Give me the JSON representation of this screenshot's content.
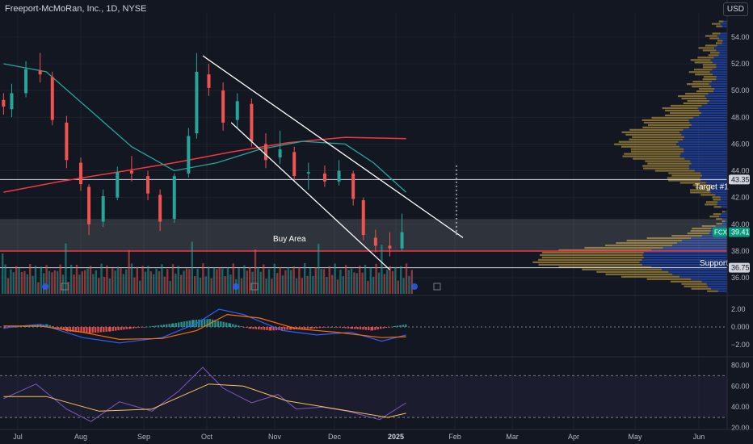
{
  "header": {
    "title": "Freeport-McMoRan, Inc., 1D, NYSE",
    "currency": "USD"
  },
  "colors": {
    "up": "#26a69a",
    "down": "#ef5350",
    "ma50": "#26a69a",
    "ma200": "#f23645",
    "line": "#ffffff",
    "vp_up": "#2962ff",
    "vp_down": "#a6893a"
  },
  "chart_data": {
    "type": "candlestick",
    "symbol": "FCX",
    "x_labels": [
      "Jul",
      "Aug",
      "Sep",
      "Oct",
      "Nov",
      "Dec",
      "2025",
      "Feb",
      "Mar",
      "Apr",
      "May",
      "Jun"
    ],
    "y_ticks": [
      36.0,
      38.0,
      40.0,
      42.0,
      44.0,
      46.0,
      48.0,
      50.0,
      52.0,
      54.0
    ],
    "ylim": [
      34.8,
      55.8
    ],
    "last_price": {
      "label": "FCX",
      "value": "39.41"
    },
    "levels": [
      {
        "name": "Target #1",
        "value": 43.35,
        "label": "43.35"
      },
      {
        "name": "Support",
        "value": 36.75,
        "label": "36.75"
      }
    ],
    "zones": [
      {
        "name": "Buy Area",
        "from": 38.0,
        "to": 40.4
      }
    ],
    "support_line": 38.0,
    "annotations": [
      {
        "text": "Buy Area",
        "x": "Nov",
        "y": 38.9
      },
      {
        "text": "Target #1",
        "y": 42.8
      },
      {
        "text": "Support",
        "y": 37.1
      }
    ],
    "channel": {
      "upper": [
        {
          "x": "2024-09-30",
          "y": 52.6
        },
        {
          "x": "2025-02-05",
          "y": 39.0
        }
      ],
      "lower": [
        {
          "x": "2024-10-14",
          "y": 47.6
        },
        {
          "x": "2024-12-31",
          "y": 36.6
        }
      ]
    },
    "prices": [
      [
        "2024-06-24",
        49.3,
        49.8,
        48.2,
        48.8
      ],
      [
        "2024-06-28",
        48.6,
        50.5,
        48.0,
        49.8
      ],
      [
        "2024-07-05",
        49.8,
        52.2,
        49.5,
        51.6
      ],
      [
        "2024-07-12",
        51.5,
        52.8,
        50.6,
        51.2
      ],
      [
        "2024-07-18",
        51.0,
        51.4,
        47.4,
        47.8
      ],
      [
        "2024-07-25",
        47.6,
        48.1,
        44.2,
        44.8
      ],
      [
        "2024-08-01",
        44.6,
        45.0,
        42.5,
        43.0
      ],
      [
        "2024-08-05",
        42.8,
        43.0,
        39.2,
        40.0
      ],
      [
        "2024-08-12",
        40.2,
        42.6,
        39.8,
        42.1
      ],
      [
        "2024-08-19",
        42.0,
        44.3,
        41.8,
        43.9
      ],
      [
        "2024-08-26",
        44.0,
        45.1,
        43.2,
        43.8
      ],
      [
        "2024-09-03",
        43.6,
        44.0,
        41.8,
        42.3
      ],
      [
        "2024-09-09",
        42.2,
        42.6,
        39.5,
        40.2
      ],
      [
        "2024-09-16",
        40.4,
        43.8,
        40.1,
        43.6
      ],
      [
        "2024-09-23",
        43.8,
        47.2,
        43.5,
        46.6
      ],
      [
        "2024-09-27",
        46.8,
        52.8,
        46.4,
        51.4
      ],
      [
        "2024-10-03",
        51.2,
        52.0,
        49.6,
        50.2
      ],
      [
        "2024-10-10",
        50.0,
        50.6,
        47.0,
        47.6
      ],
      [
        "2024-10-17",
        47.8,
        49.8,
        47.2,
        49.2
      ],
      [
        "2024-10-24",
        49.0,
        49.4,
        45.8,
        46.2
      ],
      [
        "2024-10-31",
        46.0,
        46.8,
        44.2,
        44.8
      ],
      [
        "2024-11-07",
        45.0,
        47.0,
        44.5,
        45.6
      ],
      [
        "2024-11-14",
        45.4,
        45.8,
        43.2,
        43.6
      ],
      [
        "2024-11-21",
        43.8,
        44.6,
        42.6,
        43.9
      ],
      [
        "2024-11-29",
        43.8,
        44.4,
        42.8,
        43.2
      ],
      [
        "2024-12-06",
        43.2,
        44.8,
        42.9,
        44.0
      ],
      [
        "2024-12-13",
        43.8,
        44.0,
        41.4,
        41.9
      ],
      [
        "2024-12-18",
        41.8,
        42.0,
        38.8,
        39.2
      ],
      [
        "2024-12-24",
        39.0,
        39.6,
        37.9,
        38.4
      ],
      [
        "2024-12-31",
        38.4,
        39.4,
        37.6,
        38.2
      ],
      [
        "2025-01-06",
        38.2,
        40.8,
        38.0,
        39.41
      ]
    ],
    "ma50": [
      [
        "2024-06-24",
        52.0
      ],
      [
        "2024-07-15",
        51.4
      ],
      [
        "2024-08-05",
        48.6
      ],
      [
        "2024-08-26",
        45.8
      ],
      [
        "2024-09-16",
        44.0
      ],
      [
        "2024-10-07",
        44.6
      ],
      [
        "2024-10-28",
        45.6
      ],
      [
        "2024-11-18",
        46.2
      ],
      [
        "2024-12-09",
        46.0
      ],
      [
        "2024-12-23",
        44.6
      ],
      [
        "2025-01-08",
        42.4
      ]
    ],
    "ma200": [
      [
        "2024-06-24",
        42.4
      ],
      [
        "2024-07-22",
        43.2
      ],
      [
        "2024-08-19",
        43.9
      ],
      [
        "2024-09-16",
        44.6
      ],
      [
        "2024-10-14",
        45.4
      ],
      [
        "2024-11-11",
        46.1
      ],
      [
        "2024-12-09",
        46.5
      ],
      [
        "2025-01-08",
        46.4
      ]
    ],
    "macd": {
      "y_ticks": [
        2.0,
        0.0,
        -2.0
      ],
      "y_tick_labels": [
        "2.00",
        "0.000",
        "−2.00"
      ],
      "ylim": [
        -3.0,
        3.0
      ],
      "macd": [
        [
          "2024-06-24",
          -0.1
        ],
        [
          "2024-07-12",
          0.3
        ],
        [
          "2024-08-02",
          -1.2
        ],
        [
          "2024-08-20",
          -1.8
        ],
        [
          "2024-09-10",
          -1.2
        ],
        [
          "2024-09-27",
          0.4
        ],
        [
          "2024-10-08",
          2.0
        ],
        [
          "2024-10-20",
          1.4
        ],
        [
          "2024-11-08",
          -0.4
        ],
        [
          "2024-11-25",
          -0.9
        ],
        [
          "2024-12-12",
          -0.6
        ],
        [
          "2024-12-27",
          -1.6
        ],
        [
          "2025-01-08",
          -0.9
        ]
      ],
      "signal": [
        [
          "2024-06-24",
          0.1
        ],
        [
          "2024-07-12",
          0.1
        ],
        [
          "2024-08-02",
          -0.6
        ],
        [
          "2024-08-20",
          -1.4
        ],
        [
          "2024-09-10",
          -1.3
        ],
        [
          "2024-09-27",
          -0.4
        ],
        [
          "2024-10-12",
          1.4
        ],
        [
          "2024-10-28",
          1.0
        ],
        [
          "2024-11-15",
          -0.2
        ],
        [
          "2024-12-05",
          -0.6
        ],
        [
          "2024-12-27",
          -1.2
        ],
        [
          "2025-01-08",
          -1.1
        ]
      ],
      "histogram": [
        [
          "2024-06-24",
          -0.2
        ],
        [
          "2024-07-05",
          0.2
        ],
        [
          "2024-07-15",
          0.3
        ],
        [
          "2024-07-25",
          -0.5
        ],
        [
          "2024-08-05",
          -0.7
        ],
        [
          "2024-08-15",
          -0.5
        ],
        [
          "2024-08-25",
          -0.2
        ],
        [
          "2024-09-05",
          0.1
        ],
        [
          "2024-09-15",
          0.4
        ],
        [
          "2024-09-25",
          0.8
        ],
        [
          "2024-10-03",
          0.9
        ],
        [
          "2024-10-13",
          0.4
        ],
        [
          "2024-10-23",
          -0.2
        ],
        [
          "2024-11-02",
          -0.4
        ],
        [
          "2024-11-12",
          -0.3
        ],
        [
          "2024-11-22",
          -0.2
        ],
        [
          "2024-12-02",
          0.0
        ],
        [
          "2024-12-12",
          -0.2
        ],
        [
          "2024-12-22",
          -0.4
        ],
        [
          "2025-01-02",
          0.1
        ],
        [
          "2025-01-08",
          0.3
        ]
      ]
    },
    "rsi": {
      "y_ticks": [
        80.0,
        60.0,
        40.0,
        20.0
      ],
      "y_tick_labels": [
        "80.00",
        "60.00",
        "40.00",
        "20.00"
      ],
      "ylim": [
        20.0,
        85.0
      ],
      "band": [
        30.0,
        70.0
      ],
      "rsi": [
        [
          "2024-06-24",
          48.0
        ],
        [
          "2024-07-10",
          62.0
        ],
        [
          "2024-07-25",
          38.0
        ],
        [
          "2024-08-06",
          26.0
        ],
        [
          "2024-08-20",
          45.0
        ],
        [
          "2024-09-05",
          36.0
        ],
        [
          "2024-09-18",
          55.0
        ],
        [
          "2024-09-30",
          78.0
        ],
        [
          "2024-10-10",
          58.0
        ],
        [
          "2024-10-24",
          44.0
        ],
        [
          "2024-11-06",
          52.0
        ],
        [
          "2024-11-15",
          38.0
        ],
        [
          "2024-11-28",
          40.0
        ],
        [
          "2024-12-10",
          36.0
        ],
        [
          "2024-12-26",
          28.0
        ],
        [
          "2025-01-08",
          44.0
        ]
      ],
      "rsi_ma": [
        [
          "2024-06-24",
          50.0
        ],
        [
          "2024-07-15",
          50.0
        ],
        [
          "2024-08-10",
          36.0
        ],
        [
          "2024-09-05",
          38.0
        ],
        [
          "2024-10-03",
          62.0
        ],
        [
          "2024-10-20",
          60.0
        ],
        [
          "2024-11-10",
          46.0
        ],
        [
          "2024-12-05",
          38.0
        ],
        [
          "2024-12-30",
          30.0
        ],
        [
          "2025-01-08",
          34.0
        ]
      ]
    }
  }
}
